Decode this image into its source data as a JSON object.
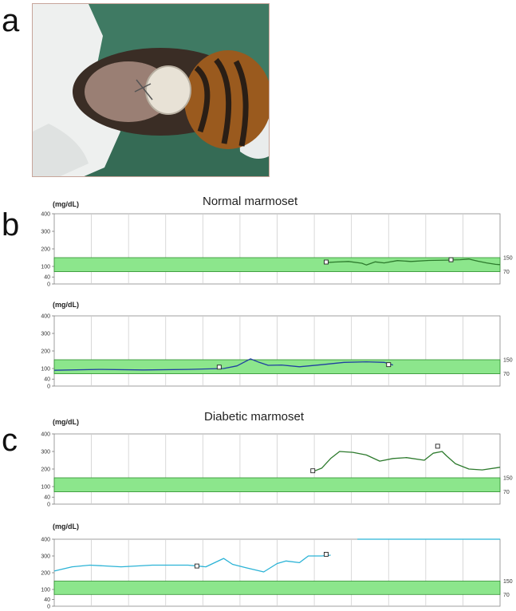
{
  "panels": {
    "a": "a",
    "b": "b",
    "c": "c"
  },
  "titles": {
    "normal": "Normal marmoset",
    "diabetic": "Diabetic marmoset"
  },
  "unit_label": "(mg/dL)",
  "target_range": {
    "low": 70,
    "high": 150,
    "fill": "#8ce68c",
    "border": "#2f8f2f"
  },
  "chart_data": [
    {
      "type": "line",
      "id": "normal-1",
      "ylabel": "(mg/dL)",
      "ylim": [
        0,
        400
      ],
      "yticks": [
        0,
        40,
        100,
        200,
        300,
        400
      ],
      "right_ticks": [
        70,
        150
      ],
      "grid": true,
      "series": [
        {
          "color": "#2d7a2d",
          "x": [
            0.61,
            0.63,
            0.66,
            0.69,
            0.7,
            0.72,
            0.74,
            0.77,
            0.8,
            0.84,
            0.88,
            0.91,
            0.93,
            0.95,
            0.97,
            0.99,
            1.0
          ],
          "y": [
            122,
            125,
            128,
            118,
            108,
            126,
            120,
            133,
            128,
            134,
            136,
            138,
            142,
            130,
            120,
            112,
            110
          ]
        }
      ],
      "markers": [
        {
          "x": 0.61,
          "y": 125,
          "label": ""
        },
        {
          "x": 0.89,
          "y": 138,
          "label": ""
        }
      ]
    },
    {
      "type": "line",
      "id": "normal-2",
      "ylabel": "(mg/dL)",
      "ylim": [
        0,
        400
      ],
      "yticks": [
        0,
        40,
        100,
        200,
        300,
        400
      ],
      "right_ticks": [
        70,
        150
      ],
      "grid": true,
      "series": [
        {
          "color": "#1f3fa0",
          "x": [
            0.0,
            0.1,
            0.2,
            0.3,
            0.38,
            0.41,
            0.44,
            0.46,
            0.48,
            0.51,
            0.55,
            0.6,
            0.65,
            0.7,
            0.74,
            0.76
          ],
          "y": [
            90,
            95,
            92,
            95,
            100,
            115,
            155,
            135,
            118,
            120,
            110,
            122,
            135,
            138,
            135,
            120
          ]
        }
      ],
      "markers": [
        {
          "x": 0.37,
          "y": 108,
          "label": ""
        },
        {
          "x": 0.75,
          "y": 122,
          "label": ""
        }
      ]
    },
    {
      "type": "line",
      "id": "diabetic-1",
      "ylabel": "(mg/dL)",
      "ylim": [
        0,
        400
      ],
      "yticks": [
        0,
        40,
        100,
        200,
        300,
        400
      ],
      "right_ticks": [
        70,
        150
      ],
      "grid": true,
      "series": [
        {
          "color": "#2d7a2d",
          "x": [
            0.58,
            0.6,
            0.62,
            0.64,
            0.67,
            0.7,
            0.73,
            0.76,
            0.79,
            0.83,
            0.85,
            0.87,
            0.88,
            0.9,
            0.93,
            0.96,
            1.0
          ],
          "y": [
            185,
            205,
            260,
            300,
            295,
            280,
            245,
            260,
            265,
            250,
            290,
            300,
            275,
            230,
            200,
            195,
            210
          ]
        }
      ],
      "markers": [
        {
          "x": 0.58,
          "y": 190,
          "label": ""
        },
        {
          "x": 0.86,
          "y": 330,
          "label": ""
        }
      ]
    },
    {
      "type": "line",
      "id": "diabetic-2",
      "ylabel": "(mg/dL)",
      "ylim": [
        0,
        400
      ],
      "yticks": [
        0,
        40,
        100,
        200,
        300,
        400
      ],
      "right_ticks": [
        70,
        150
      ],
      "grid": true,
      "series": [
        {
          "color": "#2bb3d6",
          "x": [
            0.0,
            0.04,
            0.08,
            0.15,
            0.22,
            0.3,
            0.34,
            0.36,
            0.38,
            0.4,
            0.43,
            0.47,
            0.5,
            0.52,
            0.55,
            0.57,
            0.6,
            0.62
          ],
          "y": [
            210,
            235,
            245,
            235,
            245,
            245,
            235,
            260,
            285,
            250,
            230,
            205,
            255,
            270,
            260,
            300,
            300,
            305
          ]
        },
        {
          "color": "#2bb3d6",
          "x": [
            0.68,
            1.0
          ],
          "y": [
            400,
            400
          ]
        }
      ],
      "markers": [
        {
          "x": 0.32,
          "y": 240,
          "label": ""
        },
        {
          "x": 0.61,
          "y": 310,
          "label": ""
        }
      ]
    }
  ]
}
